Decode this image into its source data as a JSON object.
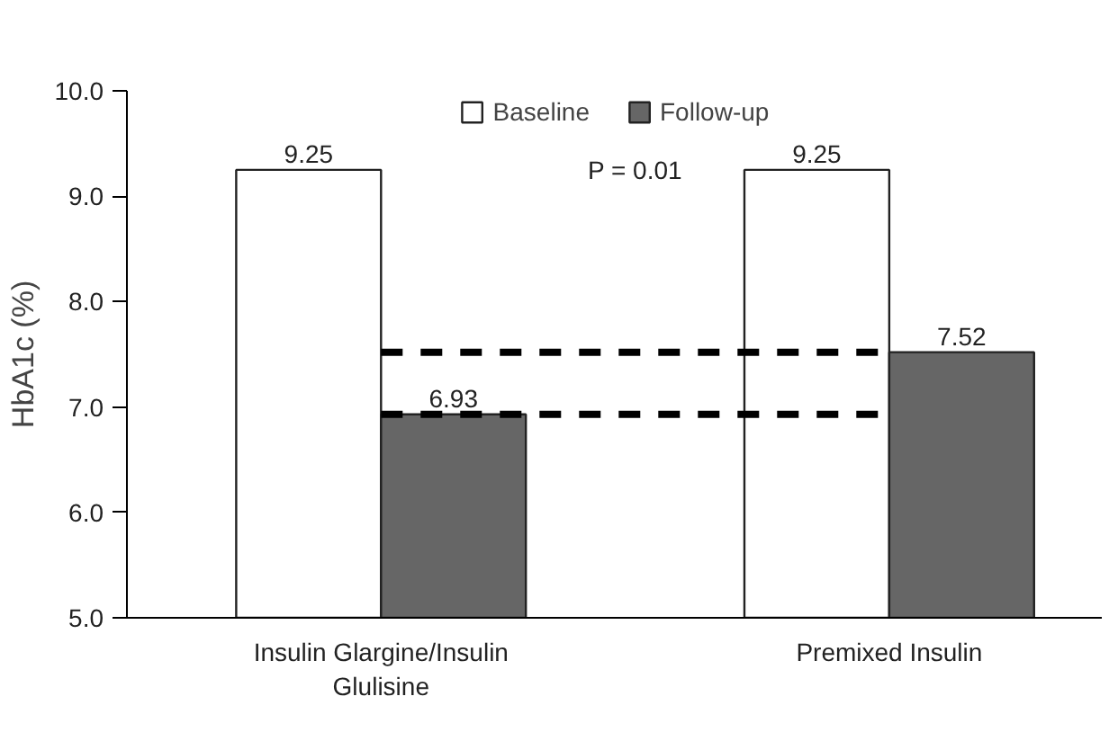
{
  "chart_data": {
    "type": "bar",
    "ylabel": "HbA1c (%)",
    "categories": [
      "Insulin Glargine/Insulin Glulisine",
      "Premixed Insulin"
    ],
    "series": [
      {
        "name": "Baseline",
        "color": "#ffffff",
        "values": [
          9.25,
          9.25
        ]
      },
      {
        "name": "Follow-up",
        "color": "#666666",
        "values": [
          6.93,
          7.52
        ]
      }
    ],
    "ylim": [
      5,
      10
    ],
    "yticks": [
      {
        "value": 5,
        "label": "5.0"
      },
      {
        "value": 6,
        "label": "6.0"
      },
      {
        "value": 7,
        "label": "7.0"
      },
      {
        "value": 8,
        "label": "8.0"
      },
      {
        "value": 9,
        "label": "9.0"
      },
      {
        "value": 10,
        "label": "10.0"
      }
    ],
    "ref_lines": [
      {
        "axis": "y",
        "value": 6.93,
        "color": "#000000",
        "line_style": "dashed"
      },
      {
        "axis": "y",
        "value": 7.52,
        "color": "#000000",
        "line_style": "dashed"
      }
    ],
    "annotations": [
      "P = 0.01"
    ],
    "data_labels": true,
    "legend": "top",
    "grid": false
  }
}
